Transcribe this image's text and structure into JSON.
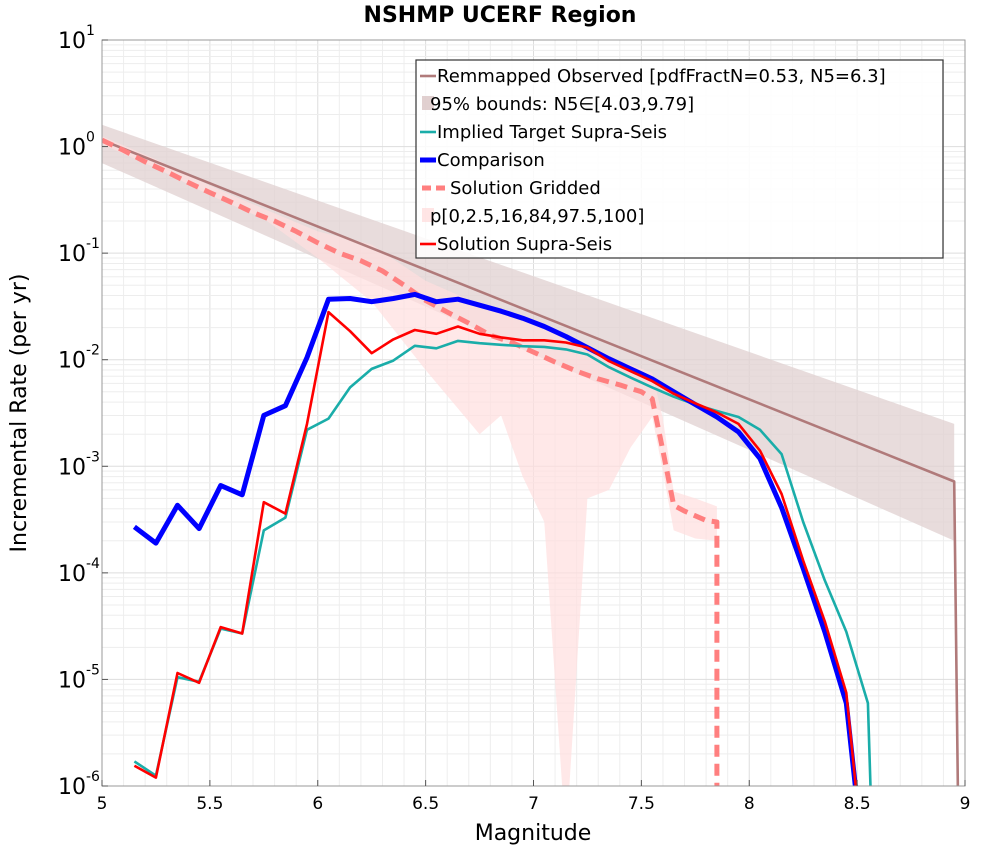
{
  "chart_data": {
    "type": "line",
    "title": "NSHMP UCERF Region",
    "xlabel": "Magnitude",
    "ylabel": "Incremental Rate (per yr)",
    "xlim": [
      5,
      9
    ],
    "ylim": [
      1e-06,
      10
    ],
    "yscale": "log",
    "grid": true,
    "legend_position": "top-right",
    "x_ticks": [
      "5",
      "5.5",
      "6",
      "6.5",
      "7",
      "7.5",
      "8",
      "8.5",
      "9"
    ],
    "y_ticks": [
      {
        "base": "10",
        "exp": "-6"
      },
      {
        "base": "10",
        "exp": "-5"
      },
      {
        "base": "10",
        "exp": "-4"
      },
      {
        "base": "10",
        "exp": "-3"
      },
      {
        "base": "10",
        "exp": "-2"
      },
      {
        "base": "10",
        "exp": "-1"
      },
      {
        "base": "10",
        "exp": "0"
      },
      {
        "base": "10",
        "exp": "1"
      }
    ],
    "legend": [
      {
        "label": "Remmapped Observed [pdfFractN=0.53, N5=6.3]",
        "style": "line",
        "color": "#b07a7a"
      },
      {
        "label": "95% bounds: N5∈[4.03,9.79]",
        "style": "band",
        "color": "#d9c4c4"
      },
      {
        "label": "Implied Target Supra-Seis",
        "style": "line",
        "color": "#1aada9"
      },
      {
        "label": "Comparison",
        "style": "thick",
        "color": "#0000ff"
      },
      {
        "label": "Solution Gridded",
        "style": "dashed",
        "color": "#ff7f7f"
      },
      {
        "label": "p[0,2.5,16,84,97.5,100]",
        "style": "band",
        "color": "#ffdede"
      },
      {
        "label": "Solution Supra-Seis",
        "style": "line",
        "color": "#ff0000"
      }
    ],
    "series": [
      {
        "name": "Remmapped Observed [pdfFractN=0.53, N5=6.3]",
        "color": "#b07a7a",
        "x": [
          5.0,
          8.95,
          8.95,
          8.97
        ],
        "y": [
          1.15,
          0.00072,
          0.00072,
          3e-07
        ]
      },
      {
        "name": "95% bounds: N5∈[4.03,9.79]",
        "color": "#e0d0d0",
        "x": [
          5.0,
          8.95
        ],
        "upper": [
          1.6,
          0.0025
        ],
        "lower": [
          0.7,
          0.0002
        ]
      },
      {
        "name": "Implied Target Supra-Seis",
        "color": "#1aada9",
        "x": [
          5.15,
          5.25,
          5.35,
          5.45,
          5.55,
          5.65,
          5.75,
          5.85,
          5.95,
          6.05,
          6.15,
          6.25,
          6.35,
          6.45,
          6.55,
          6.65,
          6.75,
          6.85,
          6.95,
          7.05,
          7.15,
          7.25,
          7.35,
          7.45,
          7.55,
          7.65,
          7.75,
          7.85,
          7.95,
          8.05,
          8.15,
          8.25,
          8.35,
          8.45,
          8.55,
          8.57
        ],
        "y": [
          1.7e-06,
          1.25e-06,
          1.05e-05,
          9.5e-06,
          3e-05,
          2.7e-05,
          0.00025,
          0.00033,
          0.0022,
          0.0028,
          0.0055,
          0.0082,
          0.0098,
          0.0135,
          0.0128,
          0.015,
          0.0143,
          0.0138,
          0.0134,
          0.0132,
          0.0125,
          0.0112,
          0.0085,
          0.0068,
          0.0055,
          0.0045,
          0.0038,
          0.0033,
          0.0029,
          0.0022,
          0.0013,
          0.0003,
          8.5e-05,
          2.8e-05,
          6e-06,
          3e-07
        ]
      },
      {
        "name": "Comparison",
        "color": "#0000ff",
        "x": [
          5.15,
          5.25,
          5.35,
          5.45,
          5.55,
          5.65,
          5.75,
          5.85,
          5.95,
          6.05,
          6.15,
          6.25,
          6.35,
          6.45,
          6.55,
          6.65,
          6.75,
          6.85,
          6.95,
          7.05,
          7.15,
          7.25,
          7.35,
          7.45,
          7.55,
          7.65,
          7.75,
          7.85,
          7.95,
          8.05,
          8.15,
          8.25,
          8.35,
          8.45,
          8.52
        ],
        "y": [
          0.00027,
          0.00019,
          0.00043,
          0.00026,
          0.00066,
          0.00054,
          0.003,
          0.0037,
          0.0105,
          0.037,
          0.0375,
          0.035,
          0.0375,
          0.041,
          0.035,
          0.037,
          0.0325,
          0.0285,
          0.0245,
          0.0205,
          0.0165,
          0.013,
          0.0102,
          0.0082,
          0.0066,
          0.005,
          0.0038,
          0.0029,
          0.0021,
          0.00118,
          0.00041,
          0.00011,
          2.8e-05,
          6e-06,
          3e-07
        ]
      },
      {
        "name": "Solution Gridded",
        "color": "#ff7f7f",
        "x": [
          5.0,
          5.1,
          5.2,
          5.3,
          5.4,
          5.5,
          5.6,
          5.7,
          5.8,
          5.9,
          6.0,
          6.1,
          6.2,
          6.3,
          6.4,
          6.5,
          6.6,
          6.7,
          6.8,
          6.9,
          7.0,
          7.1,
          7.2,
          7.3,
          7.4,
          7.5,
          7.55,
          7.6,
          7.65,
          7.7,
          7.8,
          7.85,
          7.85
        ],
        "y": [
          1.15,
          0.92,
          0.72,
          0.58,
          0.46,
          0.37,
          0.3,
          0.24,
          0.2,
          0.16,
          0.125,
          0.1,
          0.085,
          0.068,
          0.05,
          0.036,
          0.028,
          0.022,
          0.017,
          0.0145,
          0.0118,
          0.0095,
          0.0078,
          0.0066,
          0.0058,
          0.005,
          0.0043,
          0.0014,
          0.00043,
          0.00038,
          0.00031,
          0.0003,
          3e-07
        ]
      },
      {
        "name": "p[0,2.5,16,84,97.5,100]",
        "color": "#ffdede",
        "x": [
          5.0,
          5.25,
          5.5,
          5.75,
          6.0,
          6.25,
          6.5,
          6.75,
          6.85,
          6.95,
          7.05,
          7.15,
          7.25,
          7.35,
          7.45,
          7.55,
          7.6,
          7.65,
          7.75,
          7.85
        ],
        "upper": [
          1.25,
          0.76,
          0.43,
          0.26,
          0.16,
          0.12,
          0.055,
          0.033,
          0.03,
          0.024,
          0.02,
          0.016,
          0.012,
          0.01,
          0.009,
          0.0075,
          0.0028,
          0.00058,
          0.0005,
          0.00042
        ],
        "lower": [
          1.05,
          0.63,
          0.35,
          0.21,
          0.09,
          0.035,
          0.008,
          0.002,
          0.003,
          0.0008,
          0.0003,
          3e-07,
          0.0005,
          0.0006,
          0.0015,
          0.0029,
          0.0009,
          0.00025,
          0.00021,
          0.0002
        ]
      },
      {
        "name": "Solution Supra-Seis",
        "color": "#ff0000",
        "x": [
          5.15,
          5.25,
          5.35,
          5.45,
          5.55,
          5.65,
          5.75,
          5.85,
          5.95,
          6.05,
          6.15,
          6.25,
          6.35,
          6.45,
          6.55,
          6.65,
          6.75,
          6.85,
          6.95,
          7.05,
          7.15,
          7.25,
          7.35,
          7.45,
          7.55,
          7.65,
          7.75,
          7.85,
          7.95,
          8.05,
          8.15,
          8.25,
          8.35,
          8.45,
          8.52
        ],
        "y": [
          1.55e-06,
          1.2e-06,
          1.15e-05,
          9.3e-06,
          3.1e-05,
          2.7e-05,
          0.00046,
          0.00036,
          0.0025,
          0.028,
          0.0185,
          0.0115,
          0.0155,
          0.019,
          0.0175,
          0.0205,
          0.0175,
          0.0162,
          0.0152,
          0.0152,
          0.0145,
          0.013,
          0.0097,
          0.0078,
          0.0063,
          0.0048,
          0.0039,
          0.0032,
          0.0025,
          0.0014,
          0.00055,
          0.00013,
          3.5e-05,
          7.5e-06,
          3e-07
        ]
      }
    ]
  }
}
